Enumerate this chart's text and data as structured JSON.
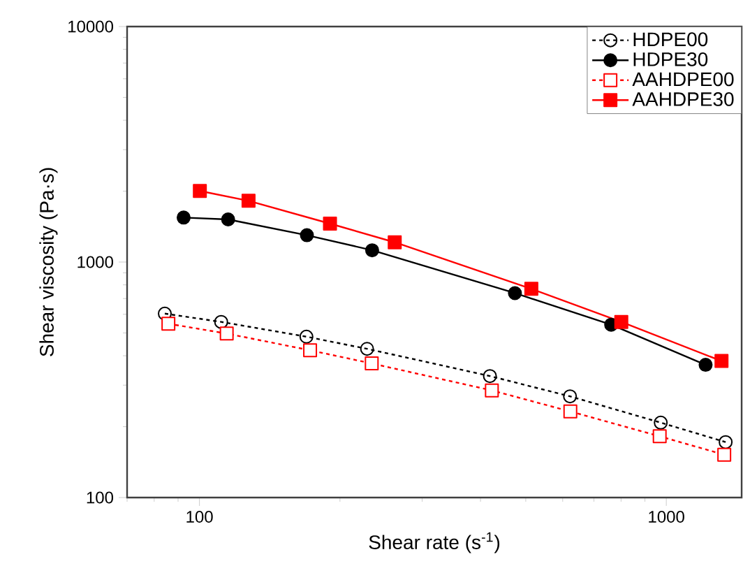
{
  "chart_data": {
    "type": "line",
    "xlabel": "Shear rate (s$^{-1}$)",
    "ylabel": "Shear viscosity (Pa·s)",
    "log": "xy",
    "xlim": [
      70,
      1450
    ],
    "ylim": [
      100,
      10000
    ],
    "xticks": [
      100,
      1000
    ],
    "yticks": [
      100,
      1000,
      10000
    ],
    "grid": false,
    "legend": "top right",
    "series": [
      {
        "name": "HDPE00",
        "color": "#000000",
        "line_style": "dotted",
        "marker": "circle",
        "x": [
          84.3,
          111.3,
          169.5,
          228.6,
          419,
          622,
          973,
          1340
        ],
        "values": [
          604,
          557,
          482,
          428,
          328,
          269,
          208,
          172
        ]
      },
      {
        "name": "HDPE30",
        "color": "#000000",
        "line_style": "solid",
        "marker": "circle",
        "x": [
          92.5,
          115.2,
          169.9,
          234.4,
          474,
          762,
          1214
        ],
        "values": [
          1545,
          1517,
          1300,
          1122,
          738,
          542,
          366
        ]
      },
      {
        "name": "AAHDPE00",
        "color": "#ff0000",
        "line_style": "dotted",
        "marker": "square",
        "x": [
          85.8,
          114.4,
          172.6,
          233.9,
          423,
          623,
          968,
          1331
        ],
        "values": [
          547,
          497,
          422,
          371,
          285,
          232,
          182,
          152
        ]
      },
      {
        "name": "AAHDPE30",
        "color": "#ff0000",
        "line_style": "solid",
        "marker": "square",
        "x": [
          100.2,
          127.4,
          190.4,
          262,
          514,
          801,
          1313
        ],
        "values": [
          2004,
          1820,
          1456,
          1213,
          770,
          557,
          380
        ]
      }
    ]
  }
}
